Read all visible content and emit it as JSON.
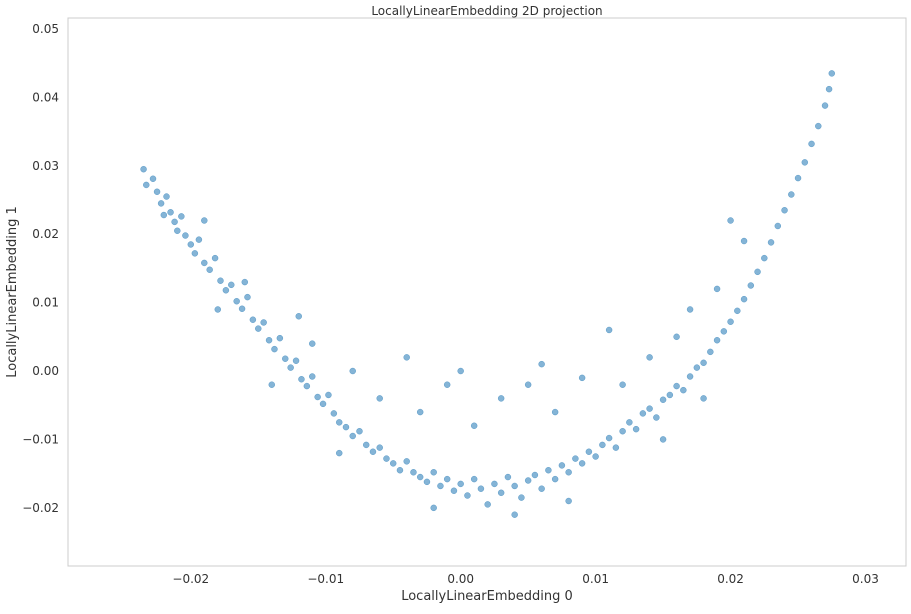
{
  "chart_data": {
    "type": "scatter",
    "title": "LocallyLinearEmbedding 2D projection",
    "x_label": "LocallyLinearEmbedding 0",
    "y_label": "LocallyLinearEmbedding 1",
    "xlim": [
      -0.0291,
      0.033
    ],
    "ylim": [
      -0.0285,
      0.0516
    ],
    "xticks": [
      {
        "value": -0.02,
        "label": "−0.02"
      },
      {
        "value": -0.01,
        "label": "−0.01"
      },
      {
        "value": 0,
        "label": "0.00"
      },
      {
        "value": 0.01,
        "label": "0.01"
      },
      {
        "value": 0.02,
        "label": "0.02"
      },
      {
        "value": 0.03,
        "label": "0.03"
      }
    ],
    "yticks": [
      {
        "value": -0.02,
        "label": "−0.02"
      },
      {
        "value": -0.01,
        "label": "−0.01"
      },
      {
        "value": 0,
        "label": "0.00"
      },
      {
        "value": 0.01,
        "label": "0.01"
      },
      {
        "value": 0.02,
        "label": "0.02"
      },
      {
        "value": 0.03,
        "label": "0.03"
      },
      {
        "value": 0.04,
        "label": "0.04"
      },
      {
        "value": 0.05,
        "label": "0.05"
      }
    ],
    "grid": false,
    "series": [
      {
        "color": "#1f77b4",
        "x": [
          -0.0235,
          -0.0233,
          -0.0228,
          -0.0225,
          -0.0222,
          -0.022,
          -0.0218,
          -0.0215,
          -0.0212,
          -0.021,
          -0.0207,
          -0.0204,
          -0.02,
          -0.0197,
          -0.0194,
          -0.019,
          -0.0186,
          -0.0182,
          -0.0178,
          -0.0174,
          -0.017,
          -0.0166,
          -0.0162,
          -0.0158,
          -0.0154,
          -0.015,
          -0.0146,
          -0.0142,
          -0.0138,
          -0.0134,
          -0.013,
          -0.0126,
          -0.0122,
          -0.0118,
          -0.0114,
          -0.011,
          -0.0106,
          -0.0102,
          -0.0098,
          -0.0094,
          -0.009,
          -0.0085,
          -0.008,
          -0.0075,
          -0.007,
          -0.0065,
          -0.006,
          -0.0055,
          -0.005,
          -0.0045,
          -0.004,
          -0.0035,
          -0.003,
          -0.0025,
          -0.002,
          -0.0015,
          -0.001,
          -0.0005,
          0,
          0.0005,
          0.001,
          0.0015,
          0.002,
          0.0025,
          0.003,
          0.0035,
          0.004,
          0.0045,
          0.005,
          0.0055,
          0.006,
          0.0065,
          0.007,
          0.0075,
          0.008,
          0.0085,
          0.009,
          0.0095,
          0.01,
          0.0105,
          0.011,
          0.0115,
          0.012,
          0.0125,
          0.013,
          0.0135,
          0.014,
          0.0145,
          0.015,
          0.0155,
          0.016,
          0.0165,
          0.017,
          0.0175,
          0.018,
          0.0185,
          0.019,
          0.0195,
          0.02,
          0.0205,
          0.021,
          0.0215,
          0.022,
          0.0225,
          0.023,
          0.0235,
          0.024,
          0.0245,
          0.025,
          0.0255,
          0.026,
          0.0265,
          0.027,
          0.0273,
          0.0275,
          -0.019,
          -0.016,
          -0.012,
          -0.011,
          -0.008,
          -0.006,
          -0.004,
          -0.003,
          -0.001,
          0,
          0.001,
          0.003,
          0.005,
          0.006,
          0.007,
          0.009,
          0.011,
          0.012,
          0.014,
          0.016,
          0.017,
          0.019,
          0.02,
          0.021,
          0.018,
          0.015,
          0.008,
          -0.002,
          -0.009,
          -0.014,
          -0.018,
          0.004
        ],
        "values": [
          0.0295,
          0.0272,
          0.0281,
          0.0262,
          0.0245,
          0.0228,
          0.0255,
          0.0232,
          0.0218,
          0.0205,
          0.0226,
          0.0198,
          0.0185,
          0.0172,
          0.0192,
          0.0158,
          0.0148,
          0.0165,
          0.0132,
          0.0118,
          0.0126,
          0.0102,
          0.0091,
          0.0108,
          0.0075,
          0.0062,
          0.0071,
          0.0045,
          0.0032,
          0.0048,
          0.0018,
          0.0005,
          0.0015,
          -0.0012,
          -0.0022,
          -0.0008,
          -0.0038,
          -0.0048,
          -0.0035,
          -0.0062,
          -0.0075,
          -0.0082,
          -0.0095,
          -0.0088,
          -0.0108,
          -0.0118,
          -0.0112,
          -0.0128,
          -0.0135,
          -0.0145,
          -0.0132,
          -0.0148,
          -0.0155,
          -0.0162,
          -0.0148,
          -0.0168,
          -0.0158,
          -0.0175,
          -0.0165,
          -0.0182,
          -0.0158,
          -0.0172,
          -0.0195,
          -0.0165,
          -0.0178,
          -0.0155,
          -0.0168,
          -0.0185,
          -0.016,
          -0.0152,
          -0.0172,
          -0.0145,
          -0.0158,
          -0.0138,
          -0.0148,
          -0.0128,
          -0.0135,
          -0.0118,
          -0.0125,
          -0.0108,
          -0.0098,
          -0.0112,
          -0.0088,
          -0.0075,
          -0.0085,
          -0.0062,
          -0.0055,
          -0.0068,
          -0.0042,
          -0.0035,
          -0.0022,
          -0.0028,
          -0.0008,
          0.0005,
          0.0012,
          0.0028,
          0.0045,
          0.0058,
          0.0072,
          0.0088,
          0.0105,
          0.0125,
          0.0145,
          0.0165,
          0.0188,
          0.0212,
          0.0235,
          0.0258,
          0.0282,
          0.0305,
          0.0332,
          0.0358,
          0.0388,
          0.0412,
          0.0435,
          0.022,
          0.013,
          0.008,
          0.004,
          0,
          -0.004,
          0.002,
          -0.006,
          -0.002,
          0,
          -0.008,
          -0.004,
          -0.002,
          0.001,
          -0.006,
          -0.001,
          0.006,
          -0.002,
          0.002,
          0.005,
          0.009,
          0.012,
          0.022,
          0.019,
          -0.004,
          -0.01,
          -0.019,
          -0.02,
          -0.012,
          -0.002,
          0.009,
          -0.021
        ]
      }
    ]
  }
}
